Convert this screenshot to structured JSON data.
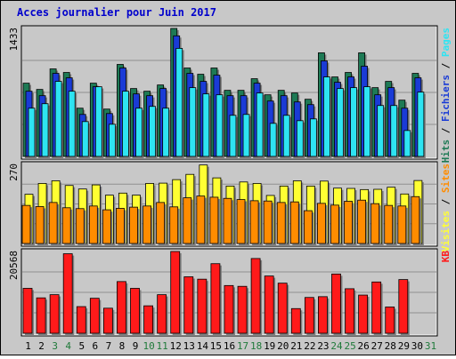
{
  "title": "Acces journalier pour Juin 2017",
  "colors": {
    "background": "#c8c8c8",
    "title": "#0000cc",
    "hits": "#1e7a55",
    "files": "#1a3bd6",
    "pages": "#2ee4f2",
    "visits": "#ffff33",
    "sites": "#ff8c00",
    "kb": "#ff1a1a",
    "weekend_label": "#1f7a3a",
    "weekday_label": "#000000"
  },
  "chart_data": [
    {
      "type": "bar",
      "panel": "top",
      "ymax_label": "1433",
      "ymax": 1433,
      "legend": [
        "Hits",
        "Fichiers",
        "Pages"
      ],
      "legend_separator": "/",
      "categories": [
        "1",
        "2",
        "3",
        "4",
        "5",
        "6",
        "7",
        "8",
        "9",
        "10",
        "11",
        "12",
        "13",
        "14",
        "15",
        "16",
        "17",
        "18",
        "19",
        "20",
        "21",
        "22",
        "23",
        "24",
        "25",
        "26",
        "27",
        "28",
        "29",
        "30",
        "31"
      ],
      "weekend_days": [
        3,
        4,
        10,
        11,
        17,
        18,
        24,
        25,
        31
      ],
      "series": [
        {
          "name": "Hits",
          "values": [
            820,
            750,
            980,
            940,
            540,
            820,
            530,
            1030,
            760,
            730,
            800,
            1433,
            990,
            920,
            990,
            740,
            740,
            870,
            690,
            740,
            710,
            640,
            1160,
            890,
            940,
            1160,
            770,
            840,
            630,
            930,
            0
          ]
        },
        {
          "name": "Fichiers",
          "values": [
            730,
            680,
            930,
            880,
            470,
            780,
            480,
            990,
            700,
            680,
            760,
            1350,
            930,
            840,
            910,
            680,
            680,
            820,
            620,
            680,
            610,
            580,
            1070,
            830,
            890,
            1010,
            690,
            770,
            540,
            880,
            0
          ]
        },
        {
          "name": "Pages",
          "values": [
            540,
            590,
            840,
            730,
            390,
            780,
            360,
            730,
            540,
            560,
            540,
            1210,
            770,
            700,
            690,
            460,
            470,
            710,
            370,
            460,
            400,
            420,
            890,
            760,
            770,
            780,
            570,
            570,
            290,
            720,
            0
          ]
        }
      ]
    },
    {
      "type": "bar",
      "panel": "middle",
      "ymax_label": "270",
      "ymax": 270,
      "legend": [
        "Visites",
        "Sites"
      ],
      "legend_separator": "/",
      "categories": [
        "1",
        "2",
        "3",
        "4",
        "5",
        "6",
        "7",
        "8",
        "9",
        "10",
        "11",
        "12",
        "13",
        "14",
        "15",
        "16",
        "17",
        "18",
        "19",
        "20",
        "21",
        "22",
        "23",
        "24",
        "25",
        "26",
        "27",
        "28",
        "29",
        "30",
        "31"
      ],
      "series": [
        {
          "name": "Visites",
          "values": [
            168,
            205,
            214,
            198,
            186,
            200,
            165,
            172,
            165,
            205,
            206,
            218,
            236,
            268,
            224,
            196,
            210,
            205,
            164,
            196,
            214,
            196,
            213,
            189,
            188,
            184,
            185,
            192,
            169,
            215,
            0
          ]
        },
        {
          "name": "Sites",
          "values": [
            130,
            126,
            140,
            122,
            119,
            128,
            115,
            120,
            124,
            128,
            140,
            125,
            156,
            162,
            158,
            154,
            150,
            146,
            145,
            140,
            142,
            112,
            137,
            131,
            144,
            148,
            136,
            130,
            128,
            160,
            0
          ]
        }
      ]
    },
    {
      "type": "bar",
      "panel": "bottom",
      "ymax_label": "20568",
      "ymax": 20568,
      "legend": [
        "KB"
      ],
      "categories": [
        "1",
        "2",
        "3",
        "4",
        "5",
        "6",
        "7",
        "8",
        "9",
        "10",
        "11",
        "12",
        "13",
        "14",
        "15",
        "16",
        "17",
        "18",
        "19",
        "20",
        "21",
        "22",
        "23",
        "24",
        "25",
        "26",
        "27",
        "28",
        "29",
        "30",
        "31"
      ],
      "series": [
        {
          "name": "KB",
          "values": [
            11300,
            8900,
            9700,
            20000,
            6700,
            8800,
            6300,
            13000,
            11300,
            6900,
            9700,
            20568,
            14200,
            13600,
            17500,
            12000,
            11800,
            18800,
            14400,
            12600,
            6200,
            9000,
            9200,
            14900,
            11200,
            9600,
            12900,
            6600,
            13500,
            0,
            0
          ]
        }
      ]
    }
  ]
}
